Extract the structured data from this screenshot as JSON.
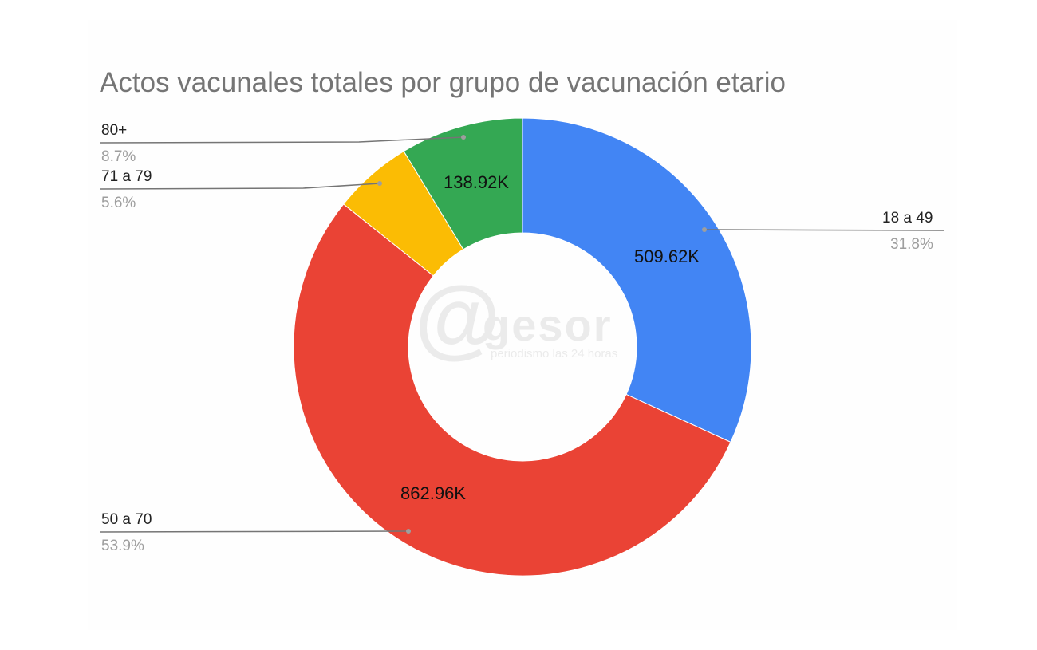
{
  "chart_data": {
    "type": "pie",
    "donut": true,
    "title": "Actos vacunales totales por grupo de vacunación etario",
    "slices": [
      {
        "name": "18 a 49",
        "value": 509.62,
        "value_label": "509.62K",
        "percent_label": "31.8%",
        "color": "#4285f4"
      },
      {
        "name": "50 a 70",
        "value": 862.96,
        "value_label": "862.96K",
        "percent_label": "53.9%",
        "color": "#ea4335"
      },
      {
        "name": "71 a 79",
        "value": 89.7,
        "percent_label": "5.6%",
        "color": "#fbbc04"
      },
      {
        "name": "80+",
        "value": 138.92,
        "value_label": "138.92K",
        "percent_label": "8.7%",
        "color": "#34a853"
      }
    ],
    "legend": "labeled leader lines"
  },
  "watermark": {
    "logo": "@gesor",
    "tagline": "periodismo las 24 horas"
  }
}
